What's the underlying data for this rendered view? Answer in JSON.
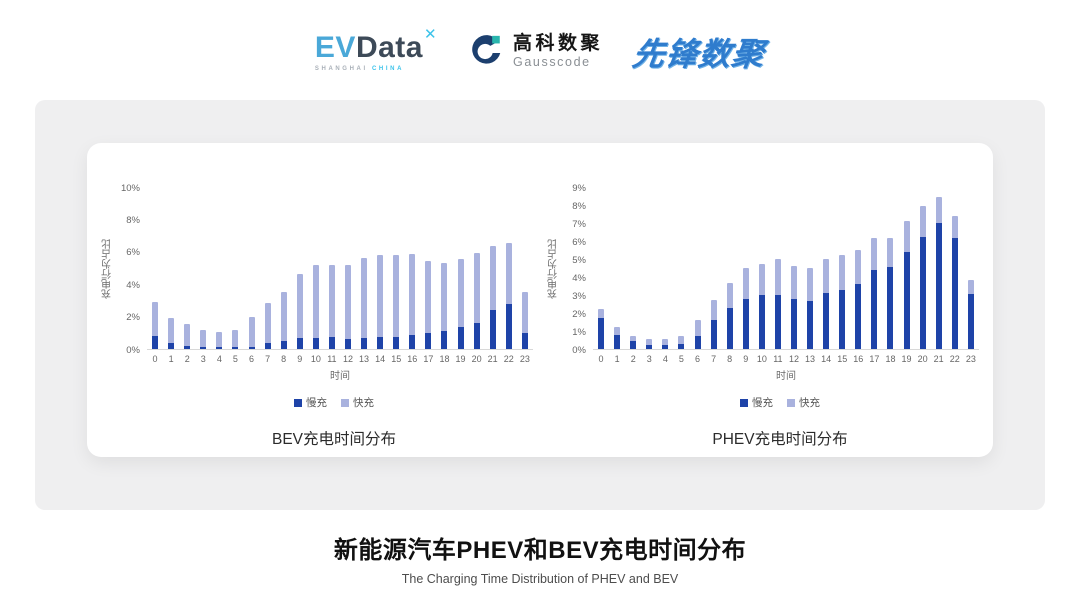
{
  "header": {
    "evdata": {
      "ev": "EV",
      "data": "Data",
      "spark_icon": "✕",
      "sub_left": "SHANGHAI",
      "sub_right": "CHINA"
    },
    "gausscode": {
      "cn": "高科数聚",
      "en": "Gausscode"
    },
    "pioneer": "先锋数聚"
  },
  "colors": {
    "slow": "#1e43a8",
    "fast": "#a9b2de",
    "panel": "#efeff0",
    "gausscode_navy": "#1c3f6e",
    "gausscode_teal": "#29b5ad"
  },
  "footer": {
    "title": "新能源汽车PHEV和BEV充电时间分布",
    "subtitle": "The Charging Time Distribution of PHEV and BEV"
  },
  "chart_data": [
    {
      "type": "bar",
      "stacked": true,
      "title": "BEV充电时间分布",
      "xlabel": "时间",
      "ylabel": "充电行为占比",
      "ylim": [
        0,
        10
      ],
      "yticks": [
        0,
        2,
        4,
        6,
        8,
        10
      ],
      "ytick_suffix": "%",
      "grid": false,
      "legend_position": "bottom",
      "categories": [
        "0",
        "1",
        "2",
        "3",
        "4",
        "5",
        "6",
        "7",
        "8",
        "9",
        "10",
        "11",
        "12",
        "13",
        "14",
        "15",
        "16",
        "17",
        "18",
        "19",
        "20",
        "21",
        "22",
        "23"
      ],
      "series": [
        {
          "name": "慢充",
          "color": "#1e43a8",
          "values": [
            0.8,
            0.4,
            0.2,
            0.1,
            0.1,
            0.1,
            0.15,
            0.4,
            0.5,
            0.7,
            0.7,
            0.75,
            0.6,
            0.65,
            0.75,
            0.75,
            0.85,
            1.0,
            1.1,
            1.35,
            1.6,
            2.4,
            2.75,
            1.0
          ]
        },
        {
          "name": "快充",
          "color": "#a9b2de",
          "values": [
            2.1,
            1.5,
            1.35,
            1.05,
            0.95,
            1.05,
            1.8,
            2.45,
            3.05,
            3.95,
            4.5,
            4.45,
            4.6,
            4.95,
            5.05,
            5.05,
            5.0,
            4.45,
            4.2,
            4.2,
            4.3,
            3.95,
            3.8,
            2.55
          ]
        }
      ]
    },
    {
      "type": "bar",
      "stacked": true,
      "title": "PHEV充电时间分布",
      "xlabel": "时间",
      "ylabel": "充电行为占比",
      "ylim": [
        0,
        9
      ],
      "yticks": [
        0,
        1,
        2,
        3,
        4,
        5,
        6,
        7,
        8,
        9
      ],
      "ytick_suffix": "%",
      "grid": false,
      "legend_position": "bottom",
      "categories": [
        "0",
        "1",
        "2",
        "3",
        "4",
        "5",
        "6",
        "7",
        "8",
        "9",
        "10",
        "11",
        "12",
        "13",
        "14",
        "15",
        "16",
        "17",
        "18",
        "19",
        "20",
        "21",
        "22",
        "23"
      ],
      "series": [
        {
          "name": "慢充",
          "color": "#1e43a8",
          "values": [
            1.75,
            0.8,
            0.45,
            0.25,
            0.25,
            0.3,
            0.75,
            1.6,
            2.3,
            2.8,
            3.0,
            3.0,
            2.8,
            2.65,
            3.1,
            3.3,
            3.6,
            4.4,
            4.55,
            5.4,
            6.2,
            7.0,
            6.15,
            3.05
          ]
        },
        {
          "name": "快充",
          "color": "#a9b2de",
          "values": [
            0.5,
            0.4,
            0.3,
            0.3,
            0.3,
            0.4,
            0.85,
            1.15,
            1.35,
            1.7,
            1.75,
            2.0,
            1.8,
            1.85,
            1.9,
            1.95,
            1.9,
            1.75,
            1.6,
            1.7,
            1.75,
            1.45,
            1.25,
            0.8
          ]
        }
      ]
    }
  ]
}
